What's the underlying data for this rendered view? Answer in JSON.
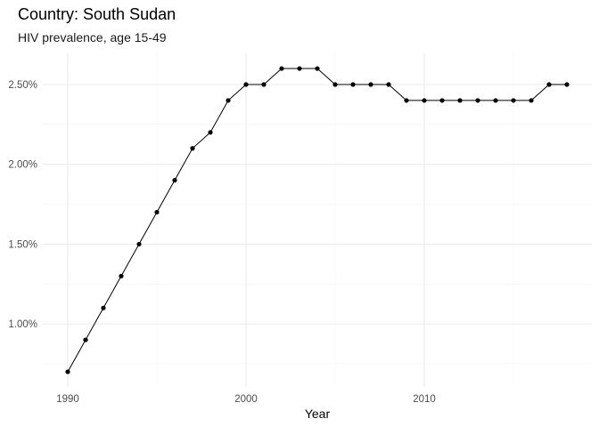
{
  "chart_data": {
    "type": "line",
    "title": "Country: South Sudan",
    "subtitle": "HIV prevalence, age 15-49",
    "xlabel": "Year",
    "ylabel": "",
    "x": [
      1990,
      1991,
      1992,
      1993,
      1994,
      1995,
      1996,
      1997,
      1998,
      1999,
      2000,
      2001,
      2002,
      2003,
      2004,
      2005,
      2006,
      2007,
      2008,
      2009,
      2010,
      2011,
      2012,
      2013,
      2014,
      2015,
      2016,
      2017,
      2018
    ],
    "values": [
      0.7,
      0.9,
      1.1,
      1.3,
      1.5,
      1.7,
      1.9,
      2.1,
      2.2,
      2.4,
      2.5,
      2.5,
      2.6,
      2.6,
      2.6,
      2.5,
      2.5,
      2.5,
      2.5,
      2.4,
      2.4,
      2.4,
      2.4,
      2.4,
      2.4,
      2.4,
      2.4,
      2.5,
      2.5
    ],
    "xlim": [
      1988.6,
      2019.4
    ],
    "ylim": [
      0.605,
      2.695
    ],
    "x_ticks": [
      1990,
      2000,
      2010
    ],
    "x_tick_labels": [
      "1990",
      "2000",
      "2010"
    ],
    "x_minor_ticks": [
      1995,
      2005,
      2015
    ],
    "y_ticks": [
      1.0,
      1.5,
      2.0,
      2.5
    ],
    "y_tick_labels": [
      "1.00%",
      "1.50%",
      "2.00%",
      "2.50%"
    ],
    "y_minor_ticks": [
      0.75,
      1.25,
      1.75,
      2.25
    ],
    "grid": true,
    "legend": "none",
    "line_color": "#000000",
    "point_color": "#000000",
    "grid_color": "#ebebeb"
  }
}
